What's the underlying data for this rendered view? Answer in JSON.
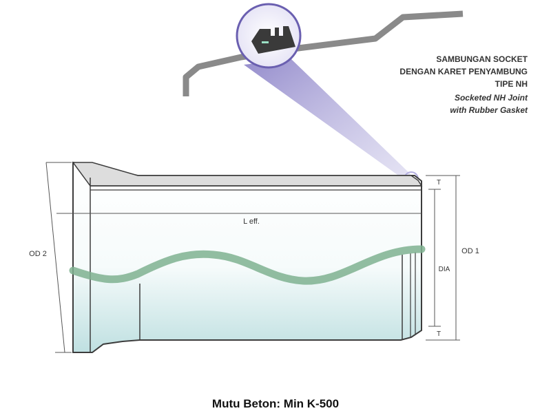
{
  "title_lines": [
    "SAMBUNGAN SOCKET",
    "DENGAN KARET PENYAMBUNG",
    "TIPE NH"
  ],
  "subtitle_lines": [
    "Socketed NH Joint",
    "with Rubber Gasket"
  ],
  "labels": {
    "leff": "L eff.",
    "od2": "OD 2",
    "od1": "OD 1",
    "dia": "DIA",
    "t_top": "T",
    "t_bottom": "T"
  },
  "caption": "Mutu Beton: Min K-500",
  "colors": {
    "outline": "#3c3c3c",
    "ground": "#8a8a8a",
    "magnifier": "#6a5fb0",
    "wave": "#7fb191",
    "water": "#cfe7e8"
  }
}
